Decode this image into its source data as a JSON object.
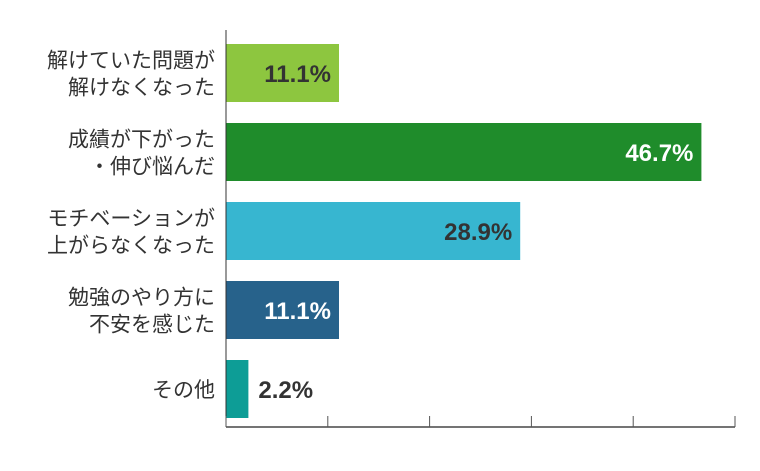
{
  "chart_data": {
    "type": "bar",
    "orientation": "horizontal",
    "categories": [
      [
        "解けていた問題が",
        "解けなくなった"
      ],
      [
        "成績が下がった",
        "・伸び悩んだ"
      ],
      [
        "モチベーションが",
        "上がらなくなった"
      ],
      [
        "勉強のやり方に",
        "不安を感じた"
      ],
      [
        "その他"
      ]
    ],
    "values": [
      11.1,
      46.7,
      28.9,
      11.1,
      2.2
    ],
    "labels": [
      "11.1%",
      "46.7%",
      "28.9%",
      "11.1%",
      "2.2%"
    ],
    "colors": [
      "#8dc63f",
      "#1f8c2b",
      "#37b6d0",
      "#27628b",
      "#0d9d96"
    ],
    "label_colors": [
      "#333333",
      "#ffffff",
      "#333333",
      "#ffffff",
      "#333333"
    ],
    "xlim": [
      0,
      50
    ],
    "xticks": [
      0,
      10,
      20,
      30,
      40,
      50
    ],
    "title": "",
    "xlabel": "",
    "ylabel": "",
    "grid": false
  }
}
